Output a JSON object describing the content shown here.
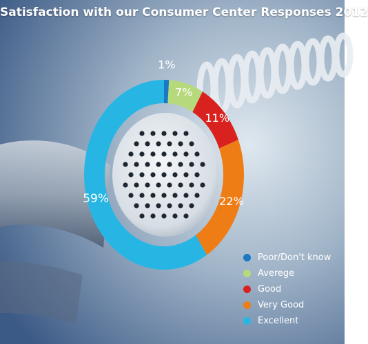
{
  "title": "Satisfaction with our Consumer Center Responses 2012",
  "chart_data": {
    "type": "pie",
    "title": "Satisfaction with our Consumer Center Responses 2012",
    "donut": true,
    "legend_position": "bottom-right",
    "categories": [
      "Poor/Don't know",
      "Averege",
      "Good",
      "Very Good",
      "Excellent"
    ],
    "values": [
      1,
      7,
      11,
      22,
      59
    ],
    "value_labels": [
      "1%",
      "7%",
      "11%",
      "22%",
      "59%"
    ],
    "colors": [
      "#1b78c2",
      "#b6d97b",
      "#d9221f",
      "#ef7d16",
      "#27b6e4"
    ]
  }
}
